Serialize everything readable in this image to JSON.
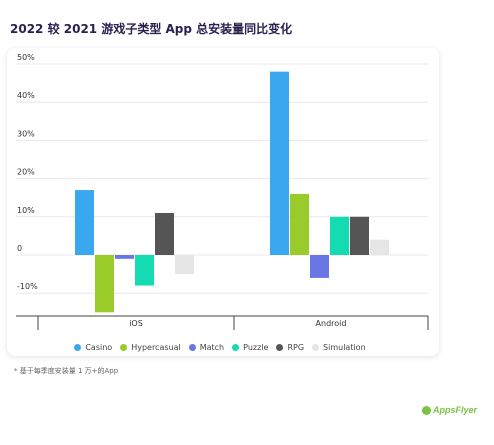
{
  "title": "2022 较 2021 游戏子类型 App 总安装量同比变化",
  "footnote": "* 基于每季度安装量 1 万+的App",
  "brand": "AppsFlyer",
  "chart_data": {
    "type": "bar",
    "categories": [
      "iOS",
      "Android"
    ],
    "series": [
      {
        "name": "Casino",
        "color": "#3aa8ee",
        "values": [
          17,
          48
        ]
      },
      {
        "name": "Hypercasual",
        "color": "#99cc2a",
        "values": [
          -15,
          16
        ]
      },
      {
        "name": "Match",
        "color": "#6a75e6",
        "values": [
          -1,
          -6
        ]
      },
      {
        "name": "Puzzle",
        "color": "#14dbb2",
        "values": [
          -8,
          10
        ]
      },
      {
        "name": "RPG",
        "color": "#555555",
        "values": [
          11,
          10
        ]
      },
      {
        "name": "Simulation",
        "color": "#e6e6e6",
        "values": [
          -5,
          4
        ]
      }
    ],
    "yticks": [
      50,
      40,
      30,
      20,
      10,
      0,
      -10
    ],
    "ytick_labels": [
      "50%",
      "40%",
      "30%",
      "20%",
      "10%",
      "0",
      "-10%"
    ],
    "ylim": [
      -15,
      50
    ],
    "grid": true,
    "legend_position": "bottom"
  }
}
